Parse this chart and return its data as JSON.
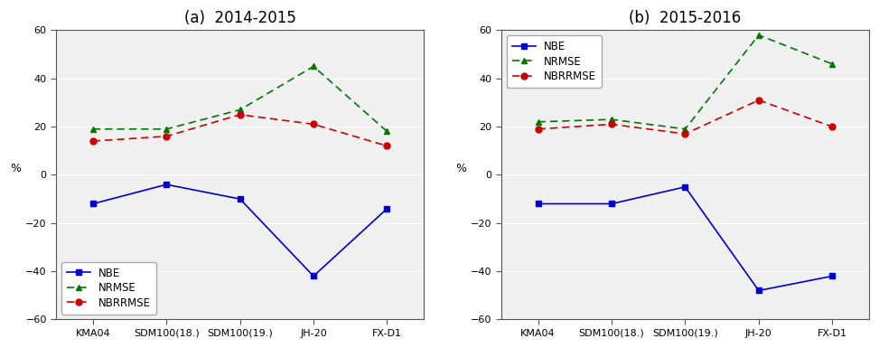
{
  "categories": [
    "KMA04",
    "SDM100(18.)",
    "SDM100(19.)",
    "JH-20",
    "FX-D1"
  ],
  "panel_a": {
    "title": "(a)  2014-2015",
    "NBE": [
      -12,
      -4,
      -10,
      -42,
      -14
    ],
    "NRMSE": [
      19,
      19,
      27,
      45,
      18
    ],
    "NBRRMSE": [
      14,
      16,
      25,
      21,
      12
    ]
  },
  "panel_b": {
    "title": "(b)  2015-2016",
    "NBE": [
      -12,
      -12,
      -5,
      -48,
      -42
    ],
    "NRMSE": [
      22,
      23,
      19,
      58,
      46
    ],
    "NBRRMSE": [
      19,
      21,
      17,
      31,
      20
    ]
  },
  "ylim": [
    -60,
    60
  ],
  "yticks": [
    -60,
    -40,
    -20,
    0,
    20,
    40,
    60
  ],
  "ylabel": "%",
  "NBE_color": "#0000cc",
  "NRMSE_color": "#007700",
  "NBRRMSE_color": "#cc0000",
  "axes_facecolor": "#f0f0f0",
  "grid_color": "#ffffff",
  "fig_facecolor": "#ffffff"
}
